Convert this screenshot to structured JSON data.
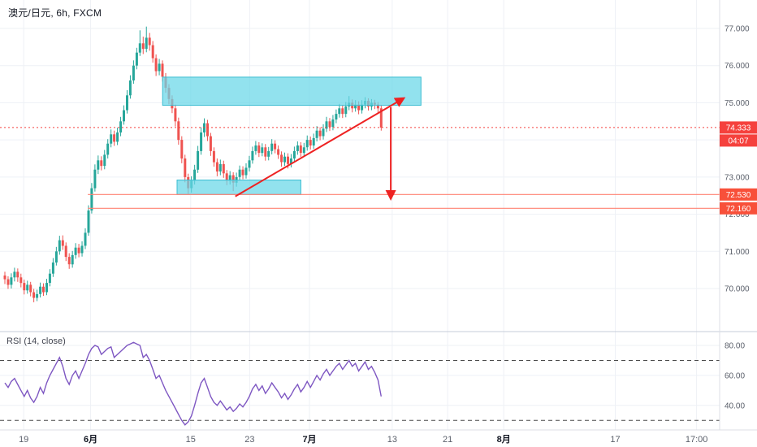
{
  "header": {
    "title": "澳元/日元, 6h, FXCM"
  },
  "colors": {
    "up": "#26a69a",
    "down": "#ef5350",
    "grid": "#eef1f6",
    "axis_text": "#5a5f6a",
    "time_major": "#131722",
    "separator": "#c6ccd8",
    "axis_border": "#dcdfe6",
    "zone_fill": "#68d7e7",
    "zone_border": "#3bbdd1",
    "level_line": "#ff8273",
    "badge_level": "#f8503a",
    "badge_current": "#f5413d",
    "arrow": "#ee2222",
    "rsi": "#7e57c2",
    "rsi_band": "#4a4a4a"
  },
  "chart_data": {
    "type": "candlestick",
    "symbol": "澳元/日元",
    "interval": "6h",
    "exchange": "FXCM",
    "price_axis": {
      "grid_values": [
        77,
        76,
        75,
        74,
        73,
        72,
        71,
        70
      ],
      "tick_values": [
        77,
        76,
        75,
        73,
        72,
        71,
        70
      ],
      "tick_labels": [
        "77.000",
        "76.000",
        "75.000",
        "73.000",
        "72.000",
        "71.000",
        "70.000"
      ],
      "range_min": 68.9,
      "range_max": 77.8
    },
    "time_axis": {
      "labels": [
        {
          "text": "19",
          "pos": 0.033,
          "major": false
        },
        {
          "text": "6月",
          "pos": 0.126,
          "major": true
        },
        {
          "text": "15",
          "pos": 0.265,
          "major": false
        },
        {
          "text": "23",
          "pos": 0.347,
          "major": false
        },
        {
          "text": "7月",
          "pos": 0.43,
          "major": true
        },
        {
          "text": "13",
          "pos": 0.545,
          "major": false
        },
        {
          "text": "21",
          "pos": 0.622,
          "major": false
        },
        {
          "text": "8月",
          "pos": 0.7,
          "major": true
        },
        {
          "text": "17",
          "pos": 0.855,
          "major": false
        },
        {
          "text": "17:00",
          "pos": 0.968,
          "major": false
        }
      ]
    },
    "candles": [
      [
        70.35,
        70.45,
        70.12,
        70.25
      ],
      [
        70.25,
        70.33,
        69.99,
        70.1
      ],
      [
        70.1,
        70.41,
        70.0,
        70.3
      ],
      [
        70.3,
        70.56,
        70.19,
        70.45
      ],
      [
        70.45,
        70.54,
        70.18,
        70.3
      ],
      [
        70.3,
        70.4,
        70.03,
        70.15
      ],
      [
        70.15,
        70.24,
        69.84,
        69.95
      ],
      [
        69.95,
        70.21,
        69.86,
        70.1
      ],
      [
        70.1,
        70.18,
        69.79,
        69.9
      ],
      [
        69.9,
        69.99,
        69.63,
        69.75
      ],
      [
        69.75,
        69.97,
        69.66,
        69.85
      ],
      [
        69.85,
        70.16,
        69.76,
        70.05
      ],
      [
        70.05,
        70.14,
        69.8,
        69.9
      ],
      [
        69.9,
        70.26,
        69.82,
        70.15
      ],
      [
        70.15,
        70.52,
        70.06,
        70.4
      ],
      [
        70.4,
        70.82,
        70.31,
        70.7
      ],
      [
        70.7,
        71.12,
        70.62,
        71.0
      ],
      [
        71.0,
        71.42,
        70.91,
        71.3
      ],
      [
        71.3,
        71.43,
        71.04,
        71.15
      ],
      [
        71.15,
        71.24,
        70.74,
        70.85
      ],
      [
        70.85,
        70.95,
        70.53,
        70.65
      ],
      [
        70.65,
        71.01,
        70.56,
        70.9
      ],
      [
        70.9,
        71.22,
        70.8,
        71.1
      ],
      [
        71.1,
        71.2,
        70.84,
        70.95
      ],
      [
        70.95,
        71.27,
        70.86,
        71.15
      ],
      [
        71.15,
        71.62,
        71.06,
        71.5
      ],
      [
        71.5,
        72.24,
        71.42,
        72.1
      ],
      [
        72.1,
        72.84,
        72.02,
        72.7
      ],
      [
        72.7,
        73.34,
        72.61,
        73.2
      ],
      [
        73.2,
        73.58,
        73.08,
        73.45
      ],
      [
        73.45,
        73.56,
        73.18,
        73.3
      ],
      [
        73.3,
        73.73,
        73.21,
        73.6
      ],
      [
        73.6,
        74.02,
        73.5,
        73.9
      ],
      [
        73.9,
        74.28,
        73.8,
        74.15
      ],
      [
        74.15,
        74.25,
        73.84,
        73.95
      ],
      [
        73.95,
        74.33,
        73.86,
        74.2
      ],
      [
        74.2,
        74.62,
        74.1,
        74.5
      ],
      [
        74.5,
        74.93,
        74.41,
        74.8
      ],
      [
        74.8,
        75.34,
        74.71,
        75.2
      ],
      [
        75.2,
        75.74,
        75.11,
        75.6
      ],
      [
        75.6,
        76.14,
        75.51,
        76.0
      ],
      [
        76.0,
        76.48,
        75.9,
        76.35
      ],
      [
        76.35,
        76.95,
        76.26,
        76.6
      ],
      [
        76.6,
        76.78,
        76.31,
        76.45
      ],
      [
        76.45,
        77.05,
        76.36,
        76.75
      ],
      [
        76.75,
        76.88,
        76.4,
        76.55
      ],
      [
        76.55,
        76.66,
        76.08,
        76.2
      ],
      [
        76.2,
        76.3,
        75.72,
        75.85
      ],
      [
        75.85,
        76.18,
        75.74,
        76.05
      ],
      [
        76.05,
        76.14,
        75.57,
        75.7
      ],
      [
        75.7,
        75.8,
        75.27,
        75.4
      ],
      [
        75.4,
        75.5,
        74.96,
        75.1
      ],
      [
        75.1,
        75.2,
        74.72,
        74.85
      ],
      [
        74.85,
        74.95,
        74.36,
        74.5
      ],
      [
        74.5,
        74.6,
        73.87,
        74.0
      ],
      [
        74.0,
        74.1,
        73.37,
        73.5
      ],
      [
        73.5,
        73.6,
        72.86,
        73.0
      ],
      [
        73.0,
        73.09,
        72.55,
        72.7
      ],
      [
        72.7,
        73.02,
        72.58,
        72.9
      ],
      [
        72.9,
        73.33,
        72.8,
        73.2
      ],
      [
        73.2,
        73.84,
        73.11,
        73.7
      ],
      [
        73.7,
        74.34,
        73.6,
        74.2
      ],
      [
        74.2,
        74.58,
        74.08,
        74.45
      ],
      [
        74.45,
        74.54,
        73.97,
        74.1
      ],
      [
        74.1,
        74.19,
        73.57,
        73.7
      ],
      [
        73.7,
        73.8,
        73.28,
        73.4
      ],
      [
        73.4,
        73.5,
        73.02,
        73.15
      ],
      [
        73.15,
        73.47,
        73.05,
        73.35
      ],
      [
        73.35,
        73.44,
        72.98,
        73.1
      ],
      [
        73.1,
        73.19,
        72.78,
        72.9
      ],
      [
        72.9,
        73.16,
        72.8,
        73.05
      ],
      [
        73.05,
        73.13,
        72.62,
        72.85
      ],
      [
        72.85,
        73.12,
        72.74,
        73.0
      ],
      [
        73.0,
        73.31,
        72.9,
        73.2
      ],
      [
        73.2,
        73.29,
        72.94,
        73.05
      ],
      [
        73.05,
        73.37,
        72.96,
        73.25
      ],
      [
        73.25,
        73.57,
        73.15,
        73.45
      ],
      [
        73.45,
        73.82,
        73.36,
        73.7
      ],
      [
        73.7,
        73.97,
        73.6,
        73.85
      ],
      [
        73.85,
        73.94,
        73.54,
        73.65
      ],
      [
        73.65,
        73.91,
        73.56,
        73.8
      ],
      [
        73.8,
        73.89,
        73.44,
        73.55
      ],
      [
        73.55,
        73.81,
        73.45,
        73.7
      ],
      [
        73.7,
        74.02,
        73.61,
        73.9
      ],
      [
        73.9,
        73.99,
        73.64,
        73.75
      ],
      [
        73.75,
        73.85,
        73.49,
        73.6
      ],
      [
        73.6,
        73.69,
        73.28,
        73.4
      ],
      [
        73.4,
        73.66,
        73.3,
        73.55
      ],
      [
        73.55,
        73.64,
        73.23,
        73.35
      ],
      [
        73.35,
        73.62,
        73.26,
        73.5
      ],
      [
        73.5,
        73.82,
        73.41,
        73.7
      ],
      [
        73.7,
        73.96,
        73.6,
        73.85
      ],
      [
        73.85,
        73.94,
        73.54,
        73.65
      ],
      [
        73.65,
        73.92,
        73.56,
        73.8
      ],
      [
        73.8,
        74.12,
        73.71,
        74.0
      ],
      [
        74.0,
        74.09,
        73.74,
        73.85
      ],
      [
        73.85,
        74.17,
        73.76,
        74.05
      ],
      [
        74.05,
        74.37,
        73.96,
        74.25
      ],
      [
        74.25,
        74.34,
        73.99,
        74.1
      ],
      [
        74.1,
        74.42,
        74.01,
        74.3
      ],
      [
        74.3,
        74.62,
        74.21,
        74.5
      ],
      [
        74.5,
        74.59,
        74.24,
        74.35
      ],
      [
        74.35,
        74.67,
        74.26,
        74.55
      ],
      [
        74.55,
        74.82,
        74.45,
        74.7
      ],
      [
        74.7,
        74.97,
        74.6,
        74.85
      ],
      [
        74.85,
        74.94,
        74.59,
        74.7
      ],
      [
        74.7,
        75.02,
        74.61,
        74.9
      ],
      [
        74.9,
        75.18,
        74.8,
        75.0
      ],
      [
        75.0,
        75.09,
        74.74,
        74.85
      ],
      [
        74.85,
        75.07,
        74.76,
        74.95
      ],
      [
        74.95,
        75.04,
        74.69,
        74.8
      ],
      [
        74.8,
        75.07,
        74.71,
        74.95
      ],
      [
        74.95,
        75.15,
        74.85,
        75.05
      ],
      [
        75.05,
        75.12,
        74.79,
        74.9
      ],
      [
        74.9,
        75.1,
        74.8,
        75.0
      ],
      [
        75.0,
        75.08,
        74.83,
        74.95
      ],
      [
        74.95,
        75.02,
        74.73,
        74.85
      ],
      [
        74.85,
        74.92,
        74.25,
        74.333
      ]
    ],
    "current_price": {
      "value": 74.333,
      "label": "74.333",
      "countdown": "04:07"
    },
    "levels": [
      {
        "label": "72.530",
        "value": 72.53,
        "x0": 0.122
      },
      {
        "label": "72.160",
        "value": 72.16,
        "x0": 0.122
      }
    ],
    "zones": [
      {
        "name": "supply",
        "x0": 0.226,
        "x1": 0.585,
        "price_top": 75.69,
        "price_bottom": 74.93
      },
      {
        "name": "demand",
        "x0": 0.246,
        "x1": 0.418,
        "price_top": 72.92,
        "price_bottom": 72.53
      }
    ],
    "trend_arrow": {
      "x0": 0.327,
      "p0": 72.48,
      "x1": 0.561,
      "p1": 75.12
    },
    "drop_arrow": {
      "x": 0.543,
      "p0": 74.88,
      "p1": 72.42
    },
    "rsi": {
      "label": "RSI (14, close)",
      "period": 14,
      "source": "close",
      "bands": [
        70,
        30
      ],
      "tick_values": [
        80,
        60,
        40
      ],
      "tick_labels": [
        "80.00",
        "60.00",
        "40.00"
      ],
      "values": [
        55,
        52,
        56,
        58,
        54,
        50,
        46,
        50,
        45,
        42,
        46,
        52,
        48,
        55,
        60,
        64,
        68,
        72,
        66,
        58,
        54,
        60,
        63,
        58,
        63,
        68,
        74,
        78,
        80,
        79,
        74,
        76,
        78,
        79,
        72,
        74,
        76,
        78,
        80,
        81,
        82,
        81,
        80,
        72,
        74,
        70,
        64,
        58,
        60,
        55,
        50,
        46,
        42,
        38,
        34,
        30,
        27,
        29,
        33,
        40,
        48,
        55,
        58,
        52,
        46,
        42,
        40,
        43,
        40,
        37,
        39,
        36,
        38,
        41,
        39,
        42,
        46,
        51,
        54,
        50,
        53,
        48,
        51,
        55,
        52,
        49,
        45,
        48,
        44,
        47,
        51,
        54,
        49,
        52,
        56,
        52,
        56,
        60,
        57,
        61,
        64,
        60,
        63,
        66,
        68,
        64,
        67,
        70,
        66,
        68,
        63,
        66,
        69,
        64,
        66,
        62,
        57,
        46
      ]
    }
  }
}
